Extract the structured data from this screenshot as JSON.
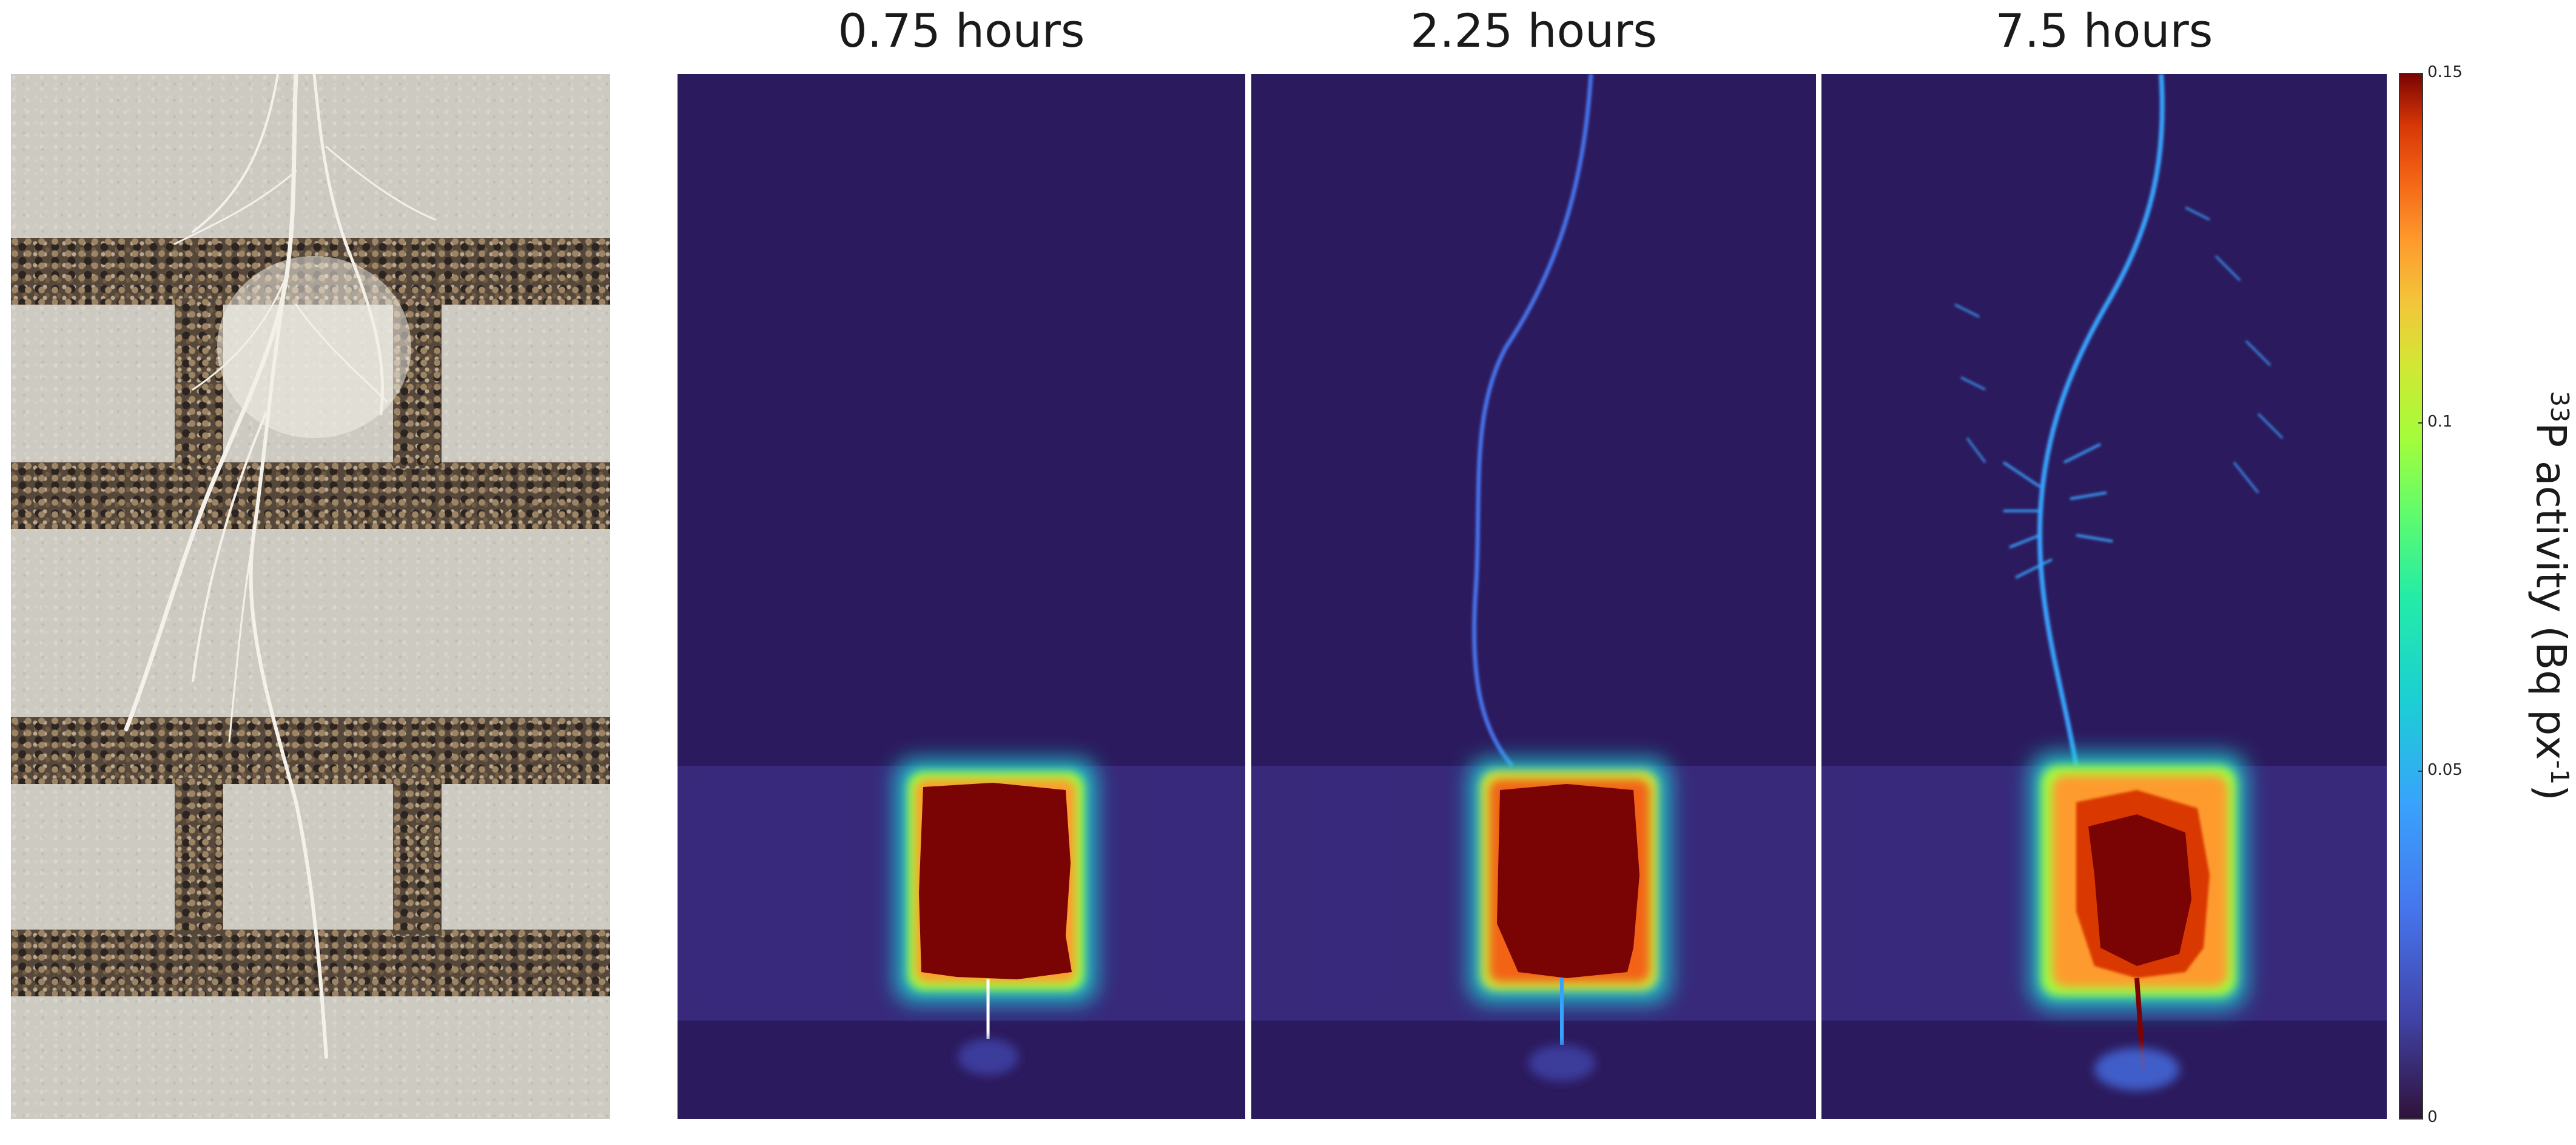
{
  "panels": [
    {
      "time_label": "0.75 hours"
    },
    {
      "time_label": "2.25 hours"
    },
    {
      "time_label": "7.5 hours"
    }
  ],
  "colorbar": {
    "isotope_sup": "33",
    "label_main": "P activity (Bq px",
    "exp_sup": "-1",
    "label_close": ")",
    "ticks": [
      "0.15",
      "0.1",
      "0.05",
      "0"
    ],
    "range": [
      0,
      0.15
    ],
    "colormap": "turbo"
  },
  "colors": {
    "background": "#2c1a5e",
    "hotspot": "#7a0403"
  }
}
